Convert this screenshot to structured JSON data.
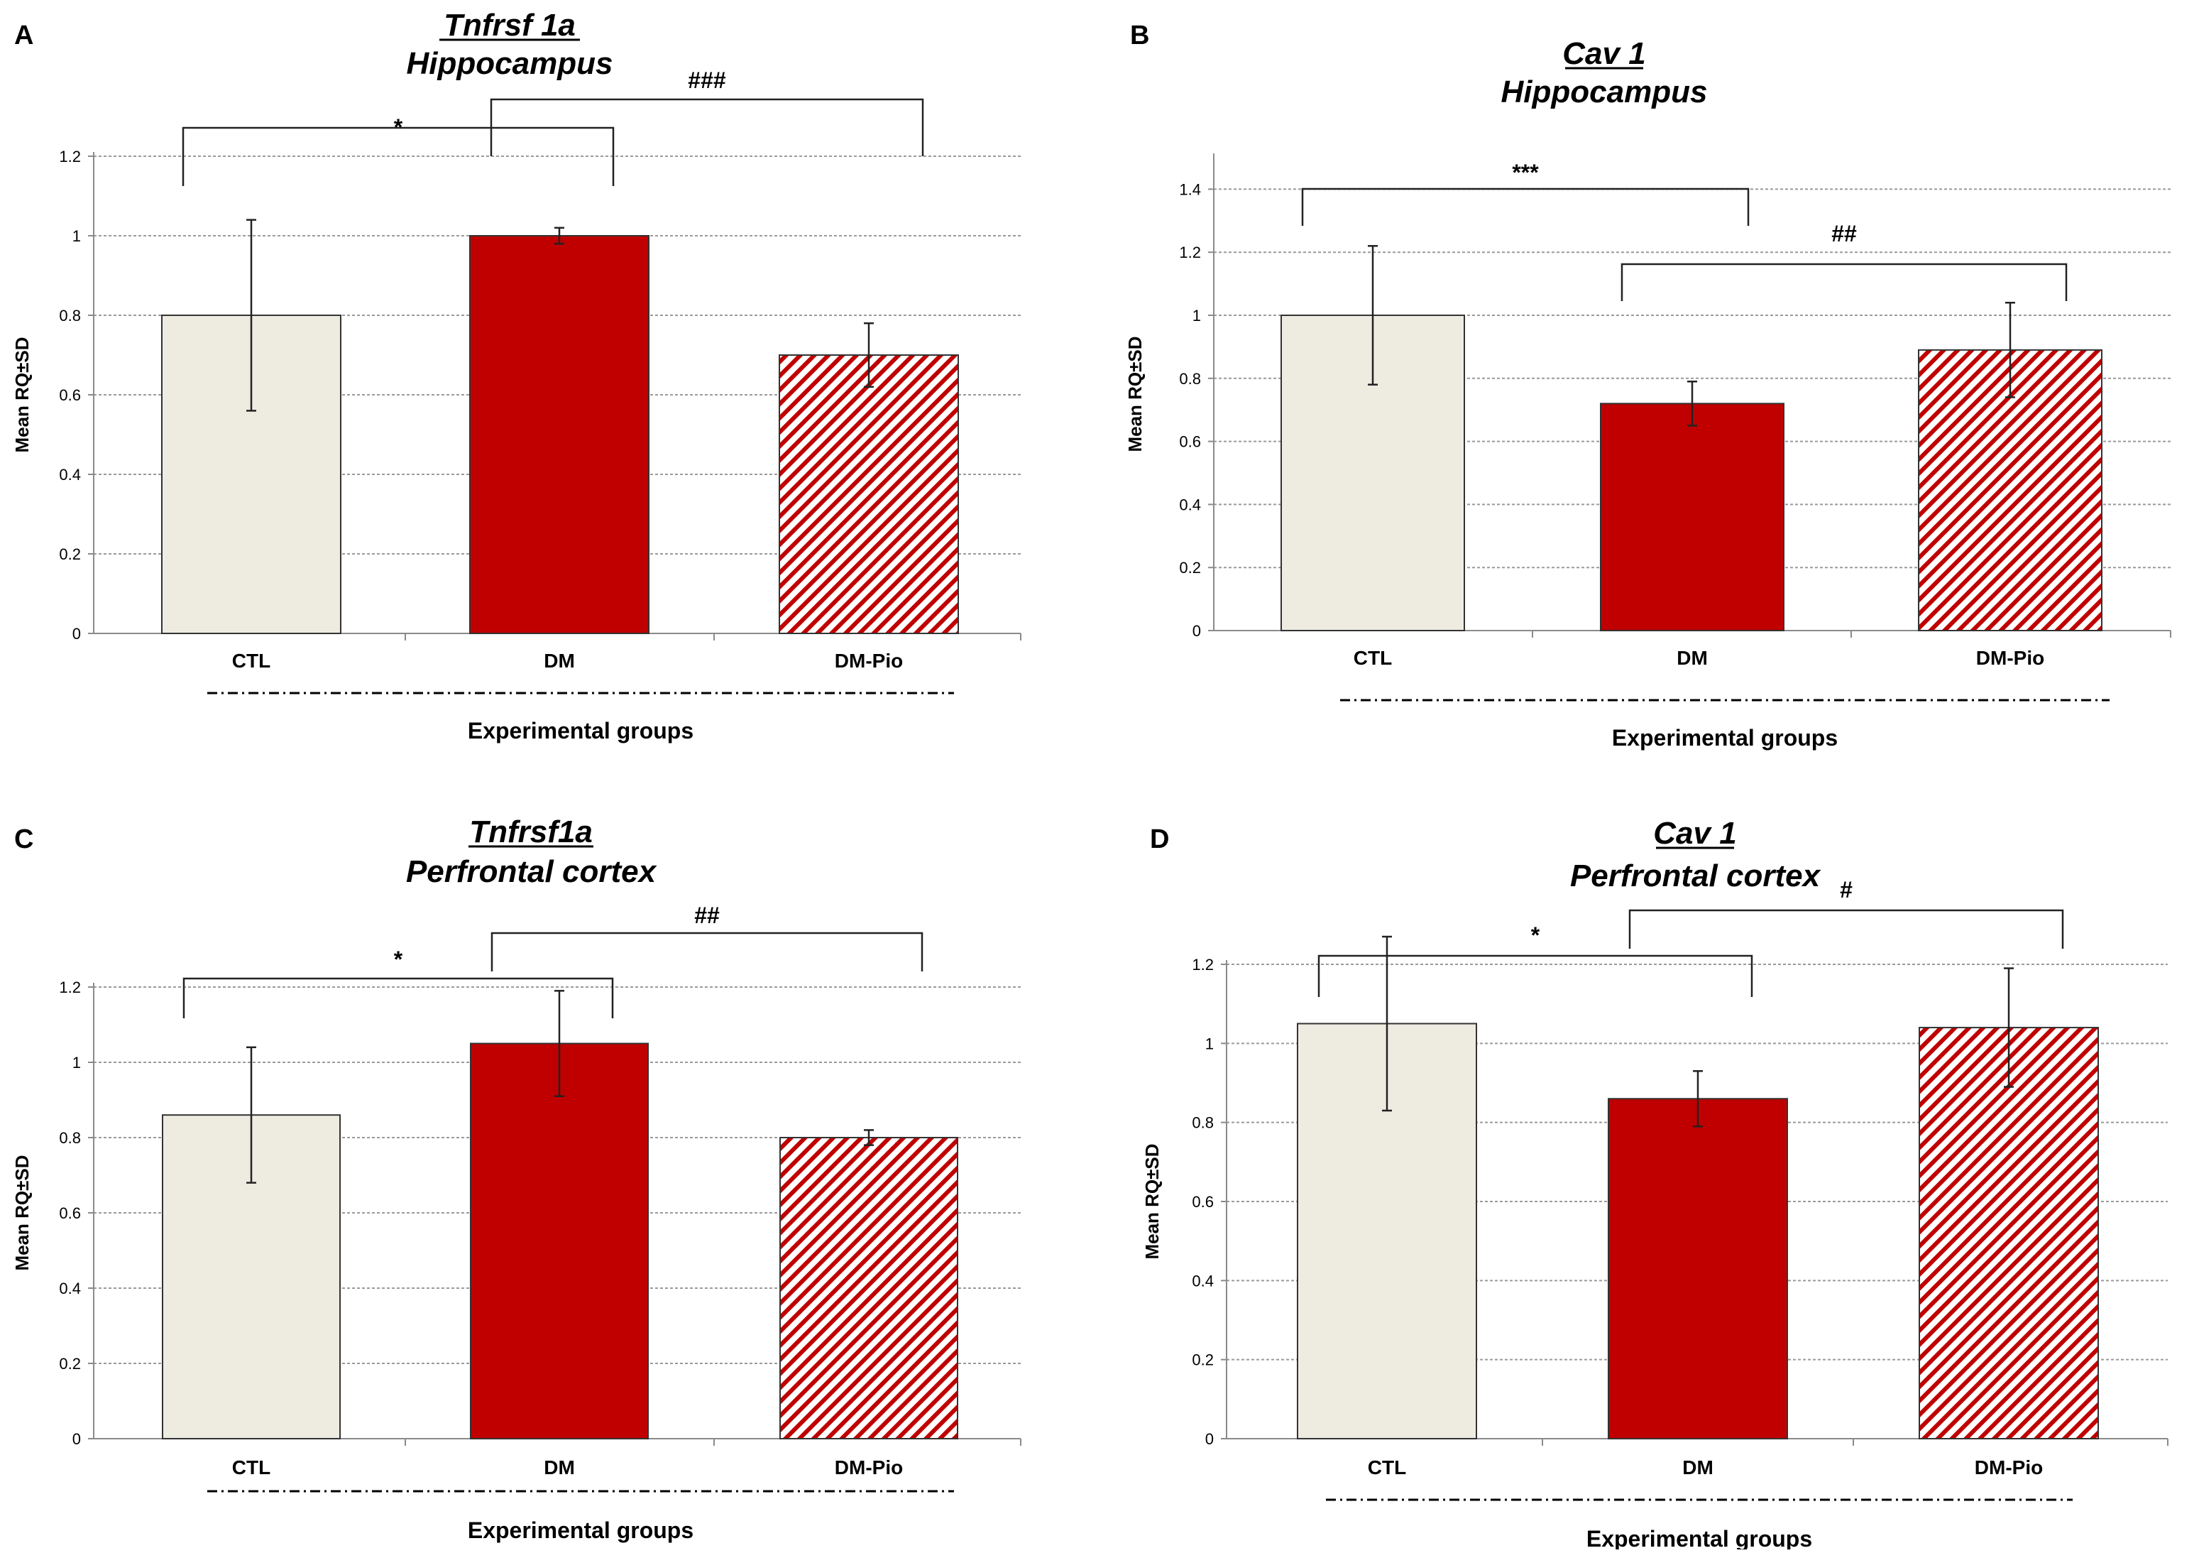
{
  "colors": {
    "ctl": "#eeebe1",
    "dm": "#c00000",
    "dmpio_stripe": "#c00000",
    "edge": "#333333"
  },
  "chart_data": [
    {
      "panel": "A",
      "type": "bar",
      "title_gene": "Tnfrsf 1a",
      "title_region": "Hippocampus",
      "ylabel": "Mean RQ±SD",
      "xlabel": "Experimental groups",
      "ylim": [
        0,
        1.2
      ],
      "yticks": [
        "0",
        "0.2",
        "0.4",
        "0.6",
        "0.8",
        "1",
        "1.2"
      ],
      "categories": [
        "CTL",
        "DM",
        "DM-Pio"
      ],
      "values": [
        0.8,
        1.0,
        0.7
      ],
      "errors": [
        0.24,
        0.02,
        0.08
      ],
      "significance": [
        {
          "label": "*",
          "from": 0,
          "to": 1
        },
        {
          "label": "###",
          "from": 1,
          "to": 2
        }
      ]
    },
    {
      "panel": "B",
      "type": "bar",
      "title_gene": "Cav 1",
      "title_region": "Hippocampus",
      "ylabel": "Mean RQ±SD",
      "xlabel": "Experimental groups",
      "ylim": [
        0,
        1.5
      ],
      "yticks": [
        "0",
        "0.2",
        "0.4",
        "0.6",
        "0.8",
        "1",
        "1.2",
        "1.4"
      ],
      "categories": [
        "CTL",
        "DM",
        "DM-Pio"
      ],
      "values": [
        1.0,
        0.72,
        0.89
      ],
      "errors": [
        0.22,
        0.07,
        0.15
      ],
      "significance": [
        {
          "label": "***",
          "from": 0,
          "to": 1
        },
        {
          "label": "##",
          "from": 1,
          "to": 2
        }
      ]
    },
    {
      "panel": "C",
      "type": "bar",
      "title_gene": "Tnfrsf1a",
      "title_region": "Perfrontal cortex",
      "ylabel": "Mean RQ±SD",
      "xlabel": "Experimental groups",
      "ylim": [
        0,
        1.2
      ],
      "yticks": [
        "0",
        "0.2",
        "0.4",
        "0.6",
        "0.8",
        "1",
        "1.2"
      ],
      "categories": [
        "CTL",
        "DM",
        "DM-Pio"
      ],
      "values": [
        0.86,
        1.05,
        0.8
      ],
      "errors": [
        0.18,
        0.14,
        0.02
      ],
      "significance": [
        {
          "label": "*",
          "from": 0,
          "to": 1
        },
        {
          "label": "##",
          "from": 1,
          "to": 2
        }
      ]
    },
    {
      "panel": "D",
      "type": "bar",
      "title_gene": "Cav 1",
      "title_region": "Perfrontal cortex",
      "ylabel": "Mean RQ±SD",
      "xlabel": "Experimental groups",
      "ylim": [
        0,
        1.2
      ],
      "yticks": [
        "0",
        "0.2",
        "0.4",
        "0.6",
        "0.8",
        "1",
        "1.2"
      ],
      "categories": [
        "CTL",
        "DM",
        "DM-Pio"
      ],
      "values": [
        1.05,
        0.86,
        1.04
      ],
      "errors": [
        0.22,
        0.07,
        0.15
      ],
      "significance": [
        {
          "label": "*",
          "from": 0,
          "to": 1
        },
        {
          "label": "#",
          "from": 1,
          "to": 2
        }
      ]
    }
  ]
}
